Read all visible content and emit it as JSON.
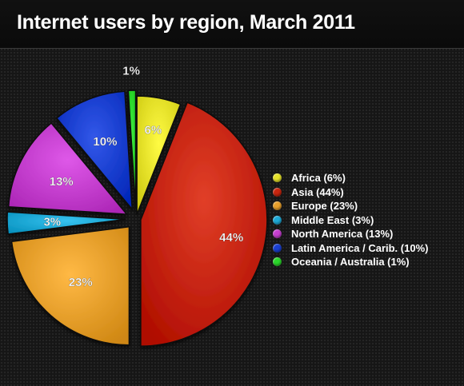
{
  "title": "Internet users by region, March 2011",
  "chart_data": {
    "type": "pie",
    "title": "Internet users by region, March 2011",
    "slices": [
      {
        "name": "Africa",
        "value": 6,
        "label": "6%",
        "legend": "Africa (6%)",
        "color": "#e6e22a",
        "label_color": "#ffffff"
      },
      {
        "name": "Asia",
        "value": 44,
        "label": "44%",
        "legend": "Asia (44%)",
        "color": "#c8260f",
        "label_color": "#ffffff"
      },
      {
        "name": "Europe",
        "value": 23,
        "label": "23%",
        "legend": "Europe (23%)",
        "color": "#e8a02c",
        "label_color": "#ffffff"
      },
      {
        "name": "Middle East",
        "value": 3,
        "label": "3%",
        "legend": "Middle East (3%)",
        "color": "#1ea9d6",
        "label_color": "#ffffff"
      },
      {
        "name": "North America",
        "value": 13,
        "label": "13%",
        "legend": "North America (13%)",
        "color": "#c53fcf",
        "label_color": "#ffffff"
      },
      {
        "name": "Latin America / Carib.",
        "value": 10,
        "label": "10%",
        "legend": "Latin America / Carib. (10%)",
        "color": "#1a3fd0",
        "label_color": "#ffffff"
      },
      {
        "name": "Oceania / Australia",
        "value": 1,
        "label": "1%",
        "legend": "Oceania / Australia (1%)",
        "color": "#2bd62b",
        "label_color": "#ffffff"
      }
    ],
    "legend_position": "right"
  }
}
